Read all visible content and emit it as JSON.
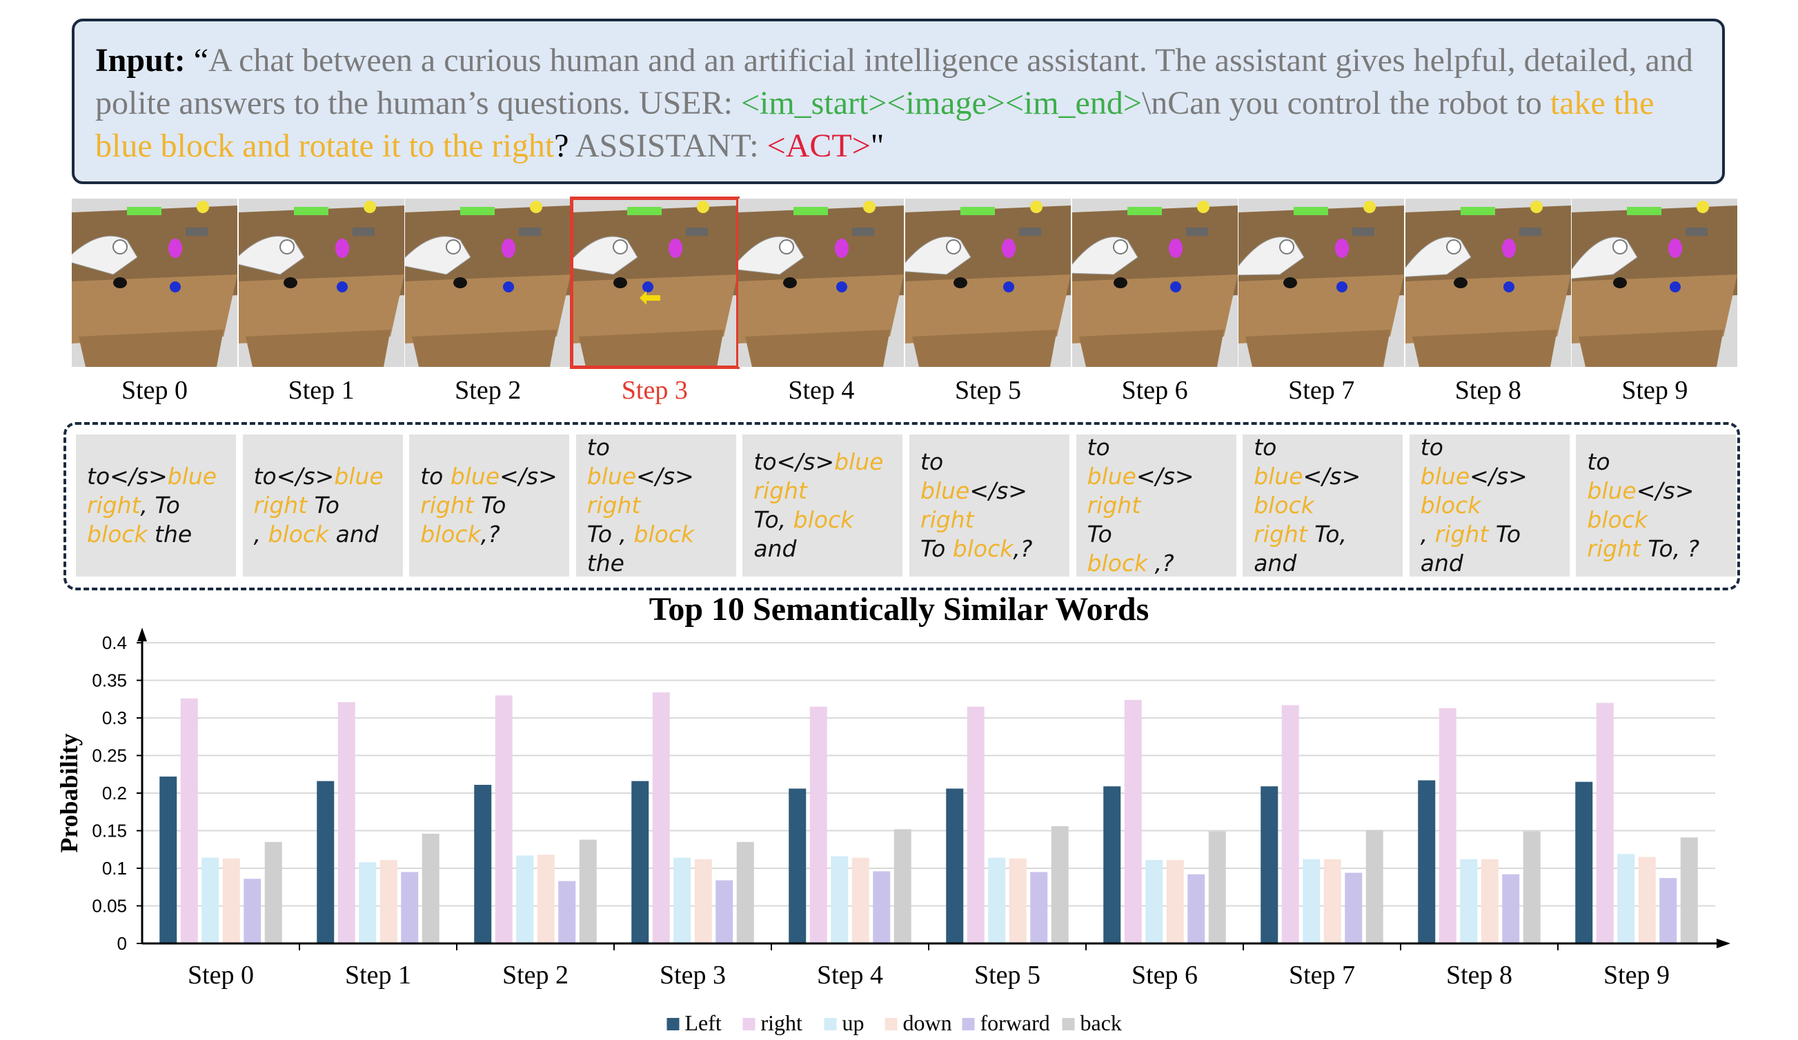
{
  "input": {
    "label": "Input:",
    "open_quote": "“",
    "text_1": "A chat between a curious human and an artificial intelligence assistant. The assistant gives helpful, detailed, and polite answers to the human’s questions. USER: ",
    "image_tokens": "<im_start><image><im_end>",
    "text_2": "\\nCan you control the robot to ",
    "task": "take the blue block and rotate it to the right",
    "qmark": "?",
    "text_3": " ASSISTANT: ",
    "act_token": "<ACT>",
    "close_quote": "\""
  },
  "steps": [
    {
      "label": "Step 0",
      "highlight": false,
      "words": [
        [
          "to</s>",
          ""
        ],
        [
          "blue",
          "y"
        ],
        [
          "\nright",
          "y"
        ],
        [
          ", To\n",
          ""
        ],
        [
          "block",
          "y"
        ],
        [
          " the",
          ""
        ]
      ]
    },
    {
      "label": "Step 1",
      "highlight": false,
      "words": [
        [
          "to</s>",
          ""
        ],
        [
          "blue",
          "y"
        ],
        [
          "\nright",
          "y"
        ],
        [
          " To\n, ",
          ""
        ],
        [
          "block",
          "y"
        ],
        [
          " and",
          ""
        ]
      ]
    },
    {
      "label": "Step 2",
      "highlight": false,
      "words": [
        [
          "to ",
          ""
        ],
        [
          "blue",
          "y"
        ],
        [
          "</s>\n",
          ""
        ],
        [
          "right",
          "y"
        ],
        [
          " To\n",
          ""
        ],
        [
          "block",
          "y"
        ],
        [
          ",?",
          ""
        ]
      ]
    },
    {
      "label": "Step 3",
      "highlight": true,
      "words": [
        [
          "to\n",
          ""
        ],
        [
          "blue",
          "y"
        ],
        [
          "</s>\n",
          ""
        ],
        [
          "right",
          "y"
        ],
        [
          "\nTo , ",
          ""
        ],
        [
          "block",
          "y"
        ],
        [
          "\nthe",
          ""
        ]
      ]
    },
    {
      "label": "Step 4",
      "highlight": false,
      "words": [
        [
          "to</s>",
          ""
        ],
        [
          "blue",
          "y"
        ],
        [
          "\n",
          ""
        ],
        [
          "right",
          "y"
        ],
        [
          "\nTo, ",
          ""
        ],
        [
          "block",
          "y"
        ],
        [
          "\nand",
          ""
        ]
      ]
    },
    {
      "label": "Step 5",
      "highlight": false,
      "words": [
        [
          "to\n",
          ""
        ],
        [
          "blue",
          "y"
        ],
        [
          "</s>\n",
          ""
        ],
        [
          "right",
          "y"
        ],
        [
          "\nTo ",
          ""
        ],
        [
          "block",
          "y"
        ],
        [
          ",?",
          ""
        ]
      ]
    },
    {
      "label": "Step 6",
      "highlight": false,
      "words": [
        [
          "to\n",
          ""
        ],
        [
          "blue",
          "y"
        ],
        [
          "</s>\n",
          ""
        ],
        [
          "right",
          "y"
        ],
        [
          "\nTo\n",
          ""
        ],
        [
          "block",
          "y"
        ],
        [
          " ,?",
          ""
        ]
      ]
    },
    {
      "label": "Step 7",
      "highlight": false,
      "words": [
        [
          "to\n",
          ""
        ],
        [
          "blue",
          "y"
        ],
        [
          "</s>\n",
          ""
        ],
        [
          "block",
          "y"
        ],
        [
          "\n",
          ""
        ],
        [
          "right",
          "y"
        ],
        [
          " To,\nand",
          ""
        ]
      ]
    },
    {
      "label": "Step 8",
      "highlight": false,
      "words": [
        [
          "to\n",
          ""
        ],
        [
          "blue",
          "y"
        ],
        [
          "</s>\n",
          ""
        ],
        [
          "block",
          "y"
        ],
        [
          "\n, ",
          ""
        ],
        [
          "right",
          "y"
        ],
        [
          " To\nand",
          ""
        ]
      ]
    },
    {
      "label": "Step 9",
      "highlight": false,
      "words": [
        [
          "to\n",
          ""
        ],
        [
          "blue",
          "y"
        ],
        [
          "</s>\n",
          ""
        ],
        [
          "block",
          "y"
        ],
        [
          "\n",
          ""
        ],
        [
          "right",
          "y"
        ],
        [
          " To, ?",
          ""
        ]
      ]
    }
  ],
  "chart_data": {
    "type": "bar",
    "title": "Top 10 Semantically Similar Words",
    "xlabel": "",
    "ylabel": "Probability",
    "ylim": [
      0,
      0.4
    ],
    "yticks": [
      "0",
      "0.05",
      "0.1",
      "0.15",
      "0.2",
      "0.25",
      "0.3",
      "0.35",
      "0.4"
    ],
    "grid": true,
    "legend_position": "bottom",
    "categories": [
      "Step 0",
      "Step 1",
      "Step 2",
      "Step 3",
      "Step 4",
      "Step 5",
      "Step 6",
      "Step 7",
      "Step 8",
      "Step 9"
    ],
    "series": [
      {
        "name": "Left",
        "color": "#2e5a7b",
        "values": [
          0.222,
          0.216,
          0.211,
          0.216,
          0.206,
          0.206,
          0.209,
          0.209,
          0.217,
          0.215
        ]
      },
      {
        "name": "right",
        "color": "#edd1ec",
        "values": [
          0.326,
          0.321,
          0.33,
          0.334,
          0.315,
          0.315,
          0.324,
          0.317,
          0.313,
          0.32
        ]
      },
      {
        "name": "up",
        "color": "#d2ecf8",
        "values": [
          0.114,
          0.108,
          0.117,
          0.114,
          0.116,
          0.114,
          0.111,
          0.112,
          0.112,
          0.119
        ]
      },
      {
        "name": "down",
        "color": "#f9e2d9",
        "values": [
          0.113,
          0.111,
          0.118,
          0.112,
          0.114,
          0.113,
          0.111,
          0.112,
          0.112,
          0.115
        ]
      },
      {
        "name": "forward",
        "color": "#c9c3ec",
        "values": [
          0.086,
          0.095,
          0.083,
          0.084,
          0.096,
          0.095,
          0.092,
          0.094,
          0.092,
          0.087
        ]
      },
      {
        "name": "back",
        "color": "#cfcfcf",
        "values": [
          0.135,
          0.146,
          0.138,
          0.135,
          0.152,
          0.156,
          0.149,
          0.151,
          0.149,
          0.141
        ]
      }
    ]
  }
}
